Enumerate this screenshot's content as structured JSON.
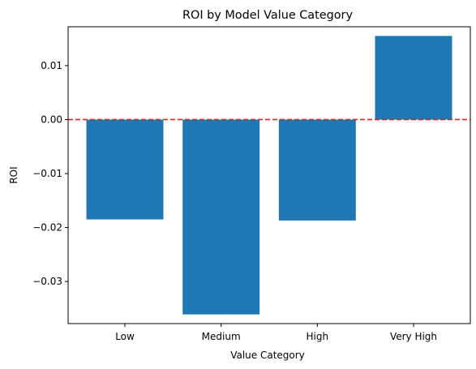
{
  "chart_data": {
    "type": "bar",
    "title": "ROI by Model Value Category",
    "xlabel": "Value Category",
    "ylabel": "ROI",
    "categories": [
      "Low",
      "Medium",
      "High",
      "Very High"
    ],
    "values": [
      -0.0185,
      -0.0361,
      -0.0187,
      0.0155
    ],
    "ylim": [
      -0.0378,
      0.0172
    ],
    "yticks": [
      0.01,
      0.0,
      -0.01,
      -0.02,
      -0.03
    ],
    "ytick_labels": [
      "0.01",
      "0.00",
      "−0.01",
      "−0.02",
      "−0.03"
    ],
    "reference_line": {
      "y": 0.0,
      "style": "dashed",
      "color": "#d62728"
    },
    "bar_color": "#1f77b4",
    "grid": false,
    "legend": null
  }
}
